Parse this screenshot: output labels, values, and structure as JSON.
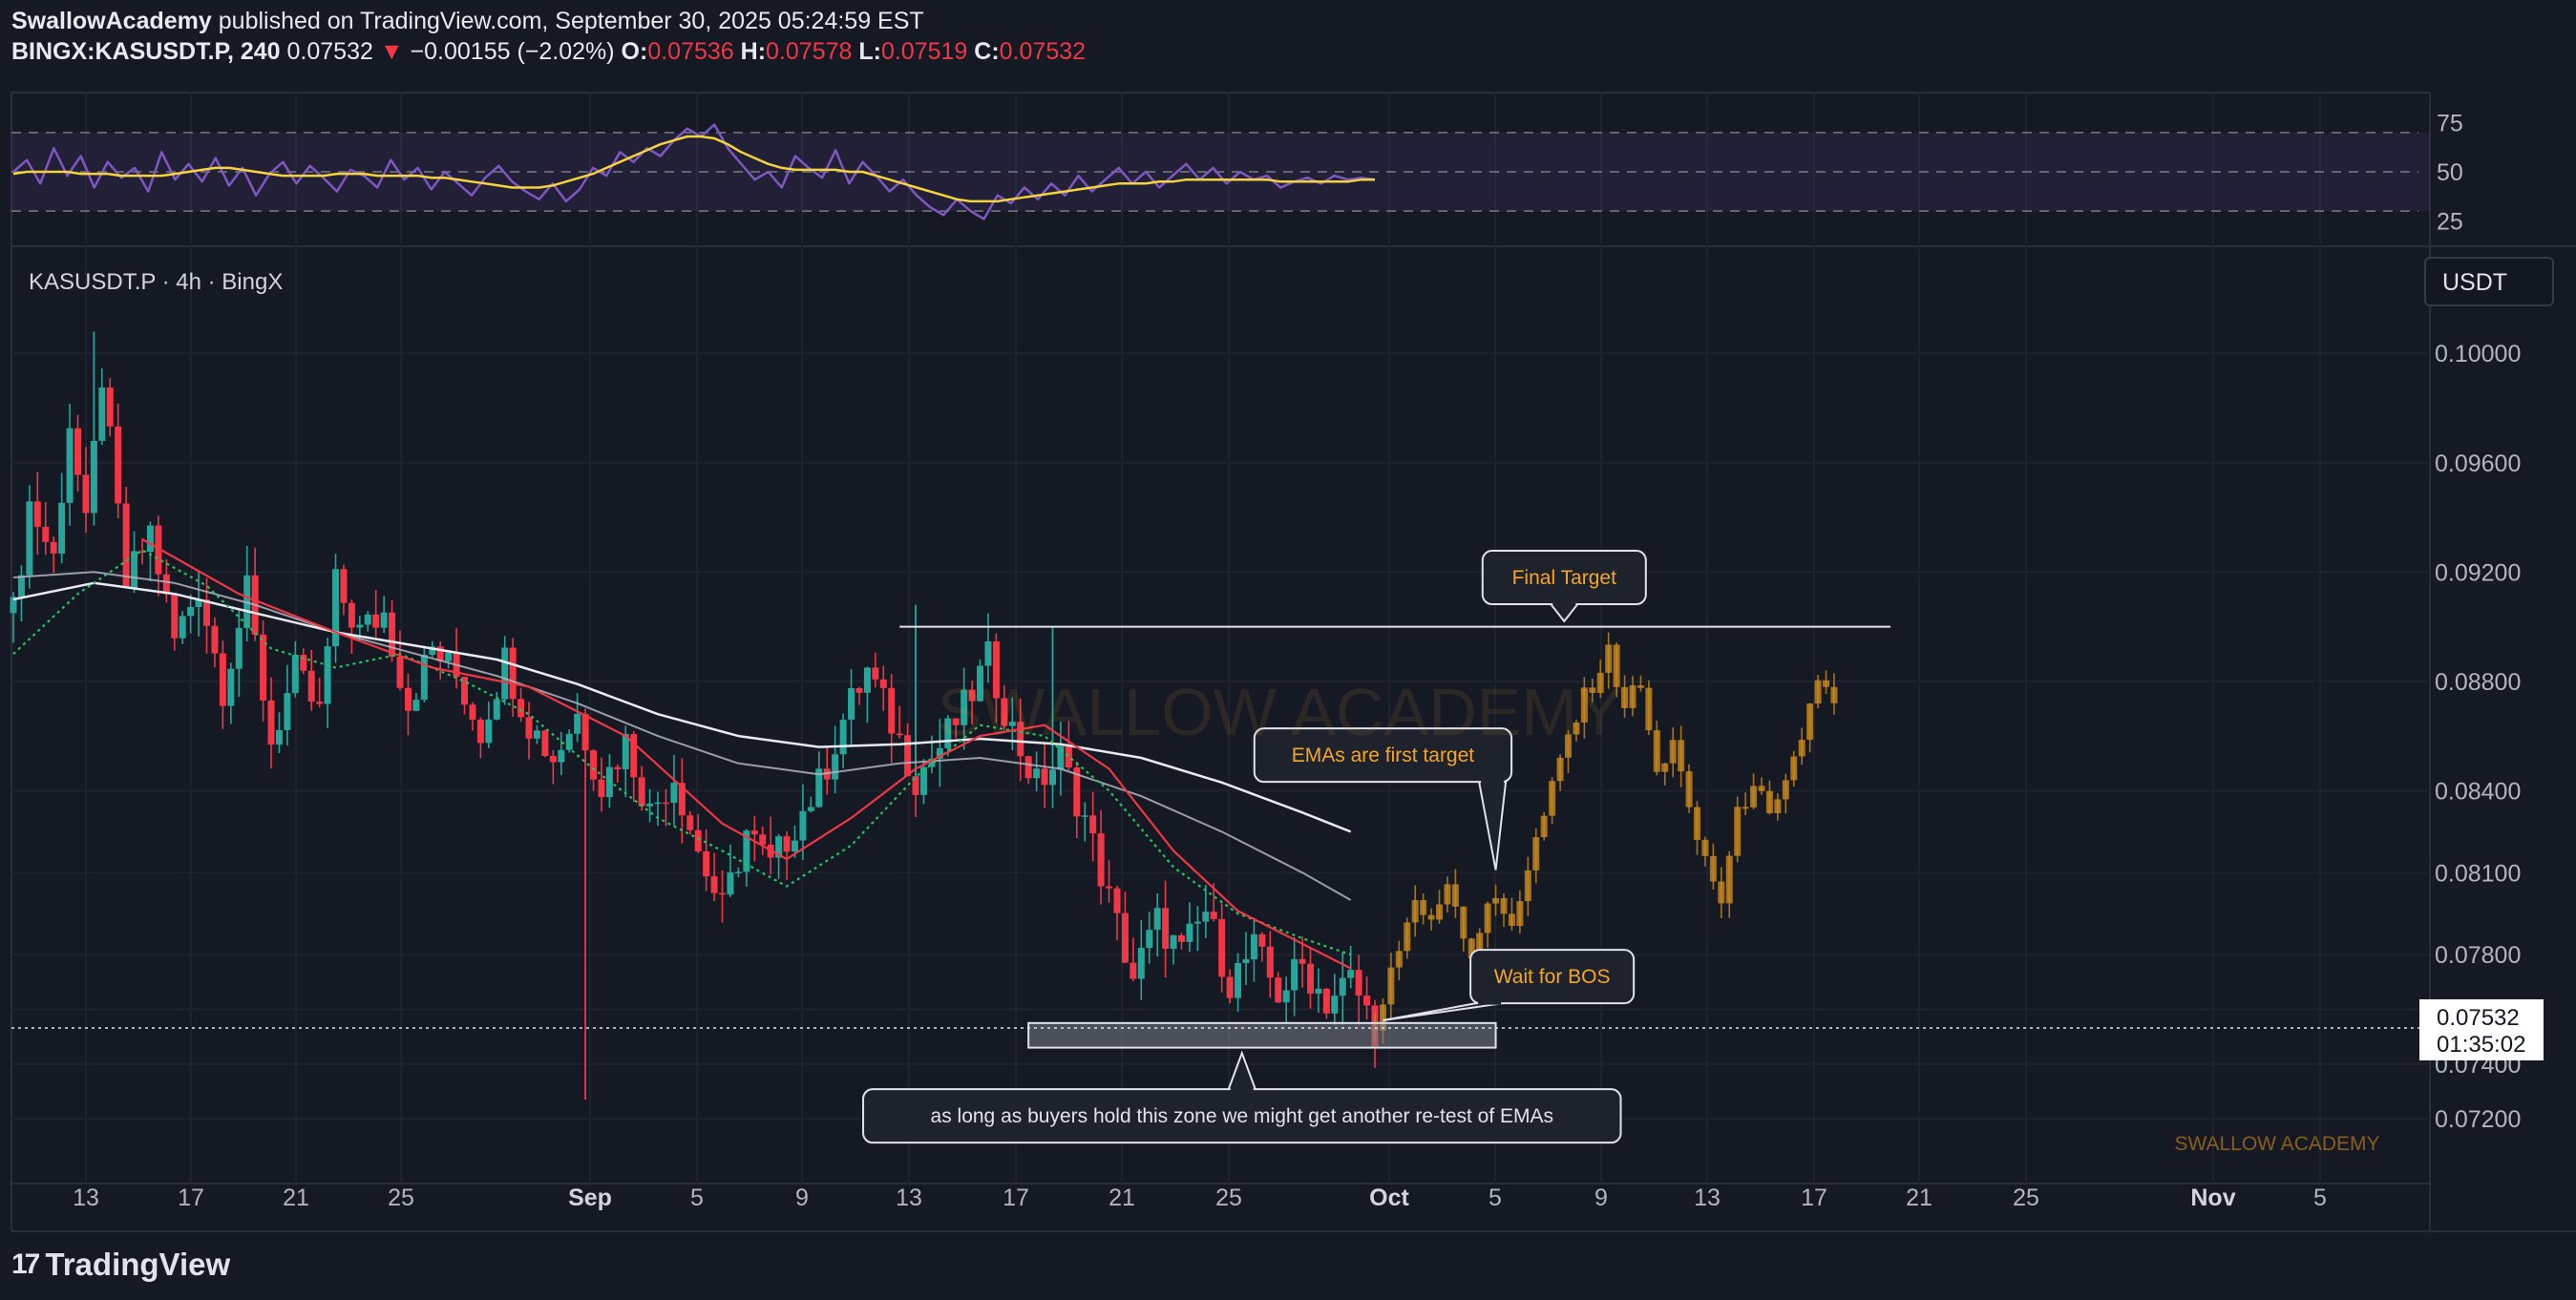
{
  "header": {
    "author": "SwallowAcademy",
    "published": " published on TradingView.com, September 30, 2025 05:24:59 EST",
    "symbol": "BINGX:KASUSDT.P, 240",
    "last": " 0.07532 ",
    "arrow": "▼",
    "change": " −0.00155 (−2.02%) ",
    "o_label": "O:",
    "o": "0.07536",
    "h_label": " H:",
    "h": "0.07578",
    "l_label": " L:",
    "l": "0.07519",
    "c_label": " C:",
    "c": "0.07532"
  },
  "pane_label": "KASUSDT.P · 4h · BingX",
  "currency": "USDT",
  "price_tag": {
    "price": "0.07532",
    "countdown": "01:35:02"
  },
  "watermark_center": "SWALLOW ACADEMY",
  "watermark_corner": "SWALLOW ACADEMY",
  "footer": {
    "brand": "TradingView"
  },
  "colors": {
    "background": "#151924",
    "bull": "#26a69a",
    "bear": "#f23645",
    "projection": "#c98a1e",
    "rsi": "#7e57c2",
    "rsi_ma": "#f5d33c"
  },
  "chart_data": [
    {
      "type": "line",
      "panel": "RSI",
      "y_ticks": [
        "75",
        "50",
        "25"
      ],
      "ylim": [
        15,
        85
      ],
      "band": [
        30,
        70
      ],
      "x": [
        0,
        3,
        6,
        9,
        12,
        15,
        18,
        21,
        24,
        27,
        30,
        33,
        36,
        39,
        42,
        45,
        48,
        51,
        54,
        57,
        60,
        63,
        66,
        69,
        72,
        75,
        78,
        81,
        84,
        87,
        90,
        93,
        96,
        99,
        102,
        105,
        108,
        111,
        114,
        117,
        120,
        123,
        126,
        129,
        132,
        135,
        138,
        141,
        144,
        147,
        150,
        153,
        156,
        159,
        162,
        165,
        168,
        171,
        174,
        177,
        180,
        183,
        186,
        189,
        192,
        195,
        198,
        201,
        204,
        207,
        210,
        213,
        216,
        219,
        222,
        225,
        228,
        231,
        234,
        237,
        240,
        243,
        246,
        249,
        252,
        255,
        258,
        261,
        264,
        267,
        270,
        273,
        276,
        279,
        282,
        285,
        288,
        291,
        294,
        297,
        300,
        303
      ],
      "series": [
        {
          "values": [
            50,
            56,
            44,
            62,
            48,
            58,
            42,
            55,
            47,
            52,
            40,
            60,
            46,
            54,
            45,
            57,
            43,
            52,
            38,
            49,
            55,
            44,
            53,
            47,
            40,
            51,
            48,
            42,
            56,
            46,
            52,
            41,
            50,
            44,
            38,
            47,
            53,
            45,
            40,
            36,
            44,
            35,
            41,
            52,
            48,
            60,
            55,
            62,
            58,
            66,
            72,
            68,
            74,
            62,
            54,
            46,
            50,
            42,
            58,
            52,
            47,
            61,
            44,
            55,
            48,
            40,
            46,
            38,
            32,
            28,
            36,
            30,
            26,
            38,
            34,
            42,
            36,
            44,
            38,
            48,
            40,
            46,
            52,
            44,
            50,
            42,
            48,
            54,
            46,
            52,
            44,
            50,
            46,
            48,
            42,
            45,
            47,
            44,
            48,
            46,
            47,
            46
          ]
        },
        {
          "values": [
            49,
            50,
            50,
            50,
            50,
            49,
            49,
            49,
            48,
            48,
            48,
            48,
            49,
            50,
            51,
            52,
            52,
            51,
            50,
            49,
            48,
            48,
            48,
            48,
            49,
            49,
            49,
            48,
            48,
            48,
            48,
            47,
            47,
            46,
            45,
            44,
            43,
            42,
            42,
            42,
            43,
            45,
            47,
            49,
            52,
            55,
            58,
            61,
            64,
            66,
            68,
            68,
            67,
            64,
            60,
            57,
            54,
            52,
            51,
            51,
            51,
            51,
            50,
            50,
            48,
            46,
            44,
            42,
            40,
            38,
            36,
            35,
            35,
            35,
            36,
            37,
            38,
            39,
            40,
            41,
            42,
            43,
            44,
            44,
            44,
            45,
            45,
            46,
            46,
            46,
            46,
            46,
            46,
            46,
            45,
            45,
            45,
            45,
            45,
            45,
            46,
            46
          ]
        }
      ]
    },
    {
      "type": "candlestick",
      "panel": "Price",
      "ylim": [
        0.0705,
        0.1035
      ],
      "y_ticks": [
        "0.10000",
        "0.09600",
        "0.09200",
        "0.08800",
        "0.08400",
        "0.08100",
        "0.07800",
        "0.07600",
        "0.07400",
        "0.07200"
      ],
      "x_ticks": [
        "13",
        "17",
        "21",
        "25",
        "Sep",
        "5",
        "9",
        "13",
        "17",
        "21",
        "25",
        "Oct",
        "5",
        "9",
        "13",
        "17",
        "21",
        "25",
        "Nov",
        "5"
      ],
      "series_path": [
        [
          0,
          0.0905
        ],
        [
          2,
          0.0945
        ],
        [
          5,
          0.0925
        ],
        [
          7,
          0.0975
        ],
        [
          9,
          0.0935
        ],
        [
          11,
          0.0992
        ],
        [
          14,
          0.0915
        ],
        [
          17,
          0.0935
        ],
        [
          20,
          0.0895
        ],
        [
          23,
          0.0915
        ],
        [
          26,
          0.0878
        ],
        [
          29,
          0.0912
        ],
        [
          32,
          0.0858
        ],
        [
          35,
          0.0883
        ],
        [
          38,
          0.0868
        ],
        [
          40,
          0.0915
        ],
        [
          43,
          0.0898
        ],
        [
          46,
          0.0905
        ],
        [
          49,
          0.0872
        ],
        [
          52,
          0.0892
        ],
        [
          55,
          0.0882
        ],
        [
          58,
          0.0862
        ],
        [
          61,
          0.0888
        ],
        [
          64,
          0.0865
        ],
        [
          67,
          0.0852
        ],
        [
          70,
          0.0868
        ],
        [
          73,
          0.0842
        ],
        [
          76,
          0.0858
        ],
        [
          79,
          0.0832
        ],
        [
          82,
          0.0846
        ],
        [
          85,
          0.0818
        ],
        [
          88,
          0.0796
        ],
        [
          91,
          0.0825
        ],
        [
          94,
          0.0812
        ],
        [
          97,
          0.0828
        ],
        [
          100,
          0.0842
        ],
        [
          103,
          0.0866
        ],
        [
          106,
          0.0884
        ],
        [
          109,
          0.0865
        ],
        [
          112,
          0.0845
        ],
        [
          115,
          0.0856
        ],
        [
          118,
          0.087
        ],
        [
          121,
          0.0888
        ],
        [
          124,
          0.0862
        ],
        [
          127,
          0.0842
        ],
        [
          130,
          0.0852
        ],
        [
          133,
          0.083
        ],
        [
          136,
          0.08
        ],
        [
          139,
          0.0772
        ],
        [
          142,
          0.0792
        ],
        [
          145,
          0.078
        ],
        [
          148,
          0.0796
        ],
        [
          151,
          0.077
        ],
        [
          154,
          0.0782
        ],
        [
          157,
          0.0766
        ],
        [
          160,
          0.0776
        ],
        [
          163,
          0.0763
        ],
        [
          166,
          0.0771
        ],
        [
          169,
          0.0753
        ]
      ],
      "spikes": [
        {
          "x": 10,
          "high": 0.1008
        },
        {
          "x": 71,
          "low": 0.0727
        },
        {
          "x": 112,
          "high": 0.0908
        },
        {
          "x": 129,
          "high": 0.09
        }
      ],
      "ema_fast_red": [
        [
          16,
          0.0932
        ],
        [
          28,
          0.0912
        ],
        [
          40,
          0.0898
        ],
        [
          52,
          0.0885
        ],
        [
          64,
          0.0878
        ],
        [
          76,
          0.086
        ],
        [
          88,
          0.0828
        ],
        [
          96,
          0.0815
        ],
        [
          104,
          0.083
        ],
        [
          112,
          0.0848
        ],
        [
          120,
          0.086
        ],
        [
          128,
          0.0864
        ],
        [
          136,
          0.0848
        ],
        [
          144,
          0.0818
        ],
        [
          152,
          0.0796
        ],
        [
          160,
          0.0784
        ],
        [
          166,
          0.0775
        ]
      ],
      "ema_green": [
        [
          0,
          0.089
        ],
        [
          8,
          0.0912
        ],
        [
          16,
          0.0928
        ],
        [
          24,
          0.0915
        ],
        [
          32,
          0.0892
        ],
        [
          40,
          0.0885
        ],
        [
          48,
          0.089
        ],
        [
          56,
          0.088
        ],
        [
          64,
          0.0868
        ],
        [
          72,
          0.0848
        ],
        [
          80,
          0.083
        ],
        [
          88,
          0.0818
        ],
        [
          96,
          0.0805
        ],
        [
          104,
          0.082
        ],
        [
          112,
          0.0845
        ],
        [
          120,
          0.0864
        ],
        [
          128,
          0.086
        ],
        [
          136,
          0.084
        ],
        [
          144,
          0.0812
        ],
        [
          152,
          0.0795
        ],
        [
          160,
          0.0786
        ],
        [
          166,
          0.078
        ]
      ],
      "ema_slow_white": [
        [
          0,
          0.091
        ],
        [
          10,
          0.0916
        ],
        [
          20,
          0.0912
        ],
        [
          30,
          0.0905
        ],
        [
          40,
          0.0898
        ],
        [
          50,
          0.0893
        ],
        [
          60,
          0.0888
        ],
        [
          70,
          0.0879
        ],
        [
          80,
          0.0868
        ],
        [
          90,
          0.086
        ],
        [
          100,
          0.0856
        ],
        [
          110,
          0.0857
        ],
        [
          120,
          0.0859
        ],
        [
          130,
          0.0857
        ],
        [
          140,
          0.0852
        ],
        [
          150,
          0.0843
        ],
        [
          160,
          0.0832
        ],
        [
          166,
          0.0825
        ]
      ],
      "ema_slowest_grey": [
        [
          0,
          0.0918
        ],
        [
          10,
          0.092
        ],
        [
          20,
          0.0916
        ],
        [
          30,
          0.0908
        ],
        [
          40,
          0.0898
        ],
        [
          50,
          0.089
        ],
        [
          60,
          0.0882
        ],
        [
          70,
          0.0872
        ],
        [
          80,
          0.086
        ],
        [
          90,
          0.085
        ],
        [
          100,
          0.0846
        ],
        [
          110,
          0.085
        ],
        [
          120,
          0.0852
        ],
        [
          130,
          0.0848
        ],
        [
          140,
          0.0838
        ],
        [
          150,
          0.0825
        ],
        [
          160,
          0.081
        ],
        [
          166,
          0.08
        ]
      ],
      "projection_path": [
        [
          169,
          0.0753
        ],
        [
          171,
          0.0775
        ],
        [
          174,
          0.08
        ],
        [
          176,
          0.079
        ],
        [
          178,
          0.0808
        ],
        [
          181,
          0.078
        ],
        [
          183,
          0.08
        ],
        [
          186,
          0.0792
        ],
        [
          188,
          0.0812
        ],
        [
          191,
          0.084
        ],
        [
          193,
          0.086
        ],
        [
          196,
          0.088
        ],
        [
          198,
          0.089
        ],
        [
          200,
          0.0872
        ],
        [
          202,
          0.0878
        ],
        [
          204,
          0.0845
        ],
        [
          206,
          0.086
        ],
        [
          208,
          0.083
        ],
        [
          210,
          0.0815
        ],
        [
          212,
          0.08
        ],
        [
          214,
          0.083
        ],
        [
          216,
          0.0845
        ],
        [
          218,
          0.0828
        ],
        [
          220,
          0.084
        ],
        [
          222,
          0.086
        ],
        [
          224,
          0.0882
        ],
        [
          226,
          0.087
        ]
      ],
      "resistance": {
        "price": 0.09,
        "x_start": 110,
        "x_end": 233
      },
      "support_zone": {
        "top": 0.0755,
        "bottom": 0.0746,
        "x_start": 126,
        "x_end": 184
      },
      "current_price": 0.07532,
      "annotations": [
        {
          "text": "Final Target",
          "x": 192.5,
          "y": 0.0918,
          "tip_x": 192.5,
          "tip_y": 0.0902
        },
        {
          "text": "EMAs are first target",
          "x": 170,
          "y": 0.0853,
          "tip_x": 184,
          "tip_y": 0.0811
        },
        {
          "text": "Wait for BOS",
          "x": 191,
          "y": 0.0772,
          "tip_x": 170,
          "tip_y": 0.0756
        },
        {
          "text": "as long as buyers hold this zone we might get another re-test of EMAs",
          "x": 152.5,
          "y": 0.0721,
          "tip_x": 152.5,
          "tip_y": 0.0744
        }
      ]
    }
  ]
}
